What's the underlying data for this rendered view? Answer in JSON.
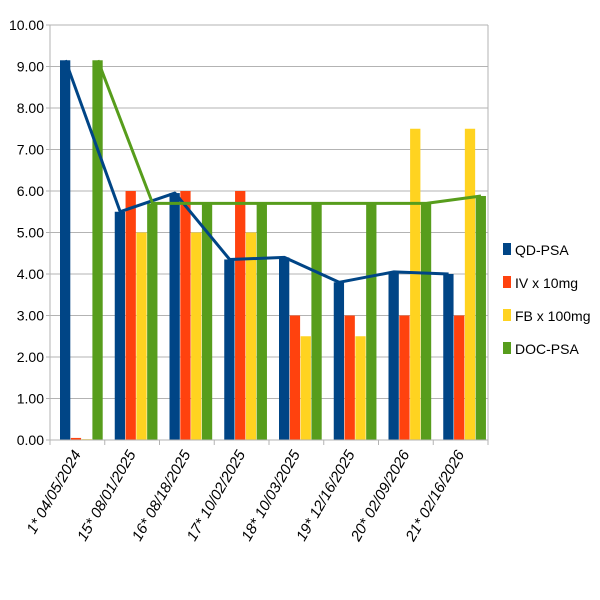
{
  "chart_data": {
    "type": "bar",
    "title": "",
    "xlabel": "",
    "ylabel": "",
    "ylim": [
      0,
      10
    ],
    "y_ticks": [
      "0.00",
      "1.00",
      "2.00",
      "3.00",
      "4.00",
      "5.00",
      "6.00",
      "7.00",
      "8.00",
      "9.00",
      "10.00"
    ],
    "grid": true,
    "legend_position": "right",
    "categories": [
      "1* 04/05/2024",
      "15* 08/01/2025",
      "16* 08/18/2025",
      "17* 10/02/2025",
      "18* 10/03/2025",
      "19* 12/16/2025",
      "20* 02/09/2026",
      "21* 02/16/2026"
    ],
    "series": [
      {
        "name": "QD-PSA",
        "color": "#004586",
        "values": [
          9.15,
          5.5,
          5.95,
          4.35,
          4.4,
          3.8,
          4.05,
          4.0
        ],
        "line_overlay": true
      },
      {
        "name": "IV x 10mg",
        "color": "#ff420e",
        "values": [
          0.05,
          6.0,
          6.0,
          6.0,
          3.0,
          3.0,
          3.0,
          3.0
        ],
        "line_overlay": false
      },
      {
        "name": "FB x 100mg",
        "color": "#ffd320",
        "values": [
          0.02,
          5.0,
          5.0,
          5.0,
          2.5,
          2.5,
          7.5,
          7.5
        ],
        "line_overlay": false
      },
      {
        "name": "DOC-PSA",
        "color": "#579d1c",
        "values": [
          9.15,
          5.7,
          5.7,
          5.7,
          5.7,
          5.7,
          5.7,
          5.88
        ],
        "line_overlay": true
      }
    ]
  }
}
